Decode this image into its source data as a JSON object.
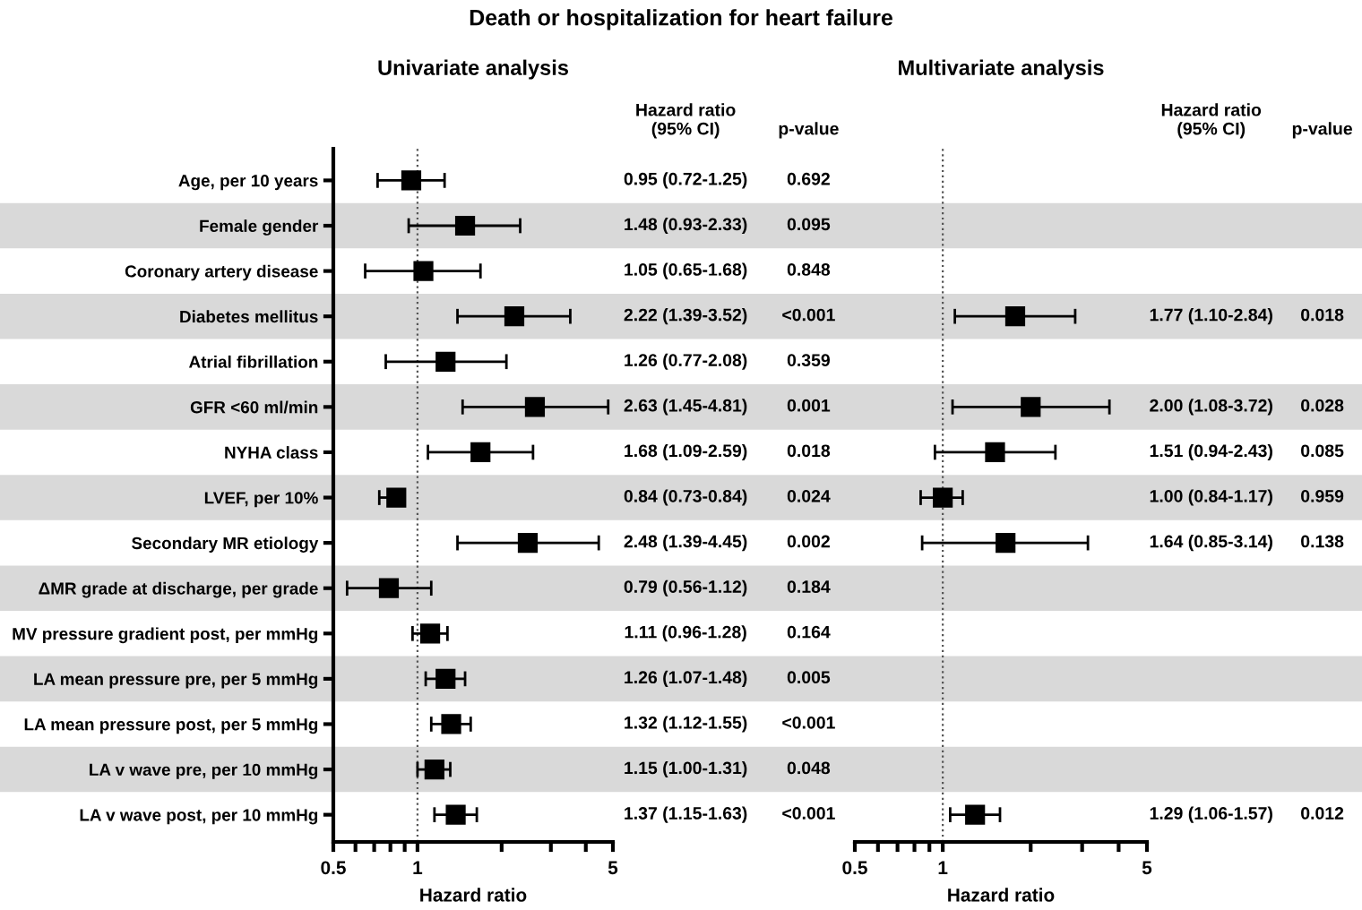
{
  "chart_data": [
    {
      "type": "scatter",
      "orientation": "horizontal",
      "title": "Death or hospitalization for heart failure",
      "subtitle": "Univariate analysis",
      "xlabel": "Hazard ratio",
      "log": "x",
      "marker": "square",
      "grid": false,
      "legend": false,
      "categories": [
        "Age, per 10 years",
        "Female gender",
        "Coronary artery disease",
        "Diabetes mellitus",
        "Atrial fibrillation",
        "GFR <60 ml/min",
        "NYHA class",
        "LVEF, per 10%",
        "Secondary MR etiology",
        "ΔMR grade at discharge, per grade",
        "MV pressure gradient post, per mmHg",
        "LA mean pressure pre, per 5 mmHg",
        "LA mean pressure post, per 5 mmHg",
        "LA v wave pre, per 10 mmHg",
        "LA v wave post, per 10 mmHg"
      ],
      "series": [
        {
          "color": "#000000",
          "values": [
            0.95,
            1.48,
            1.05,
            2.22,
            1.26,
            2.63,
            1.68,
            0.84,
            2.48,
            0.79,
            1.11,
            1.26,
            1.32,
            1.15,
            1.37
          ],
          "errors": [
            [
              0.72,
              1.25
            ],
            [
              0.93,
              2.33
            ],
            [
              0.65,
              1.68
            ],
            [
              1.39,
              3.52
            ],
            [
              0.77,
              2.08
            ],
            [
              1.45,
              4.81
            ],
            [
              1.09,
              2.59
            ],
            [
              0.73,
              0.84
            ],
            [
              1.39,
              4.45
            ],
            [
              0.56,
              1.12
            ],
            [
              0.96,
              1.28
            ],
            [
              1.07,
              1.48
            ],
            [
              1.12,
              1.55
            ],
            [
              1.0,
              1.31
            ],
            [
              1.15,
              1.63
            ]
          ],
          "value_labels": [
            "0.95 (0.72-1.25)",
            "1.48 (0.93-2.33)",
            "1.05 (0.65-1.68)",
            "2.22 (1.39-3.52)",
            "1.26 (0.77-2.08)",
            "2.63 (1.45-4.81)",
            "1.68 (1.09-2.59)",
            "0.84 (0.73-0.84)",
            "2.48 (1.39-4.45)",
            "0.79 (0.56-1.12)",
            "1.11 (0.96-1.28)",
            "1.26 (1.07-1.48)",
            "1.32 (1.12-1.55)",
            "1.15 (1.00-1.31)",
            "1.37 (1.15-1.63)"
          ]
        }
      ],
      "xlim": [
        0.5,
        5
      ],
      "xticks": [
        0.5,
        {
          "value": 0.6,
          "label": null
        },
        {
          "value": 0.7,
          "label": null
        },
        {
          "value": 0.8,
          "label": null
        },
        {
          "value": 0.9,
          "label": null
        },
        1,
        {
          "value": 2,
          "label": null
        },
        {
          "value": 3,
          "label": null
        },
        {
          "value": 4,
          "label": null
        },
        5
      ],
      "ref_lines": [
        {
          "axis": "x",
          "value": 1,
          "color": "#555555",
          "line_style": "dotted"
        }
      ],
      "bands": [
        {
          "axis": "y",
          "from": "Female gender",
          "to": "Female gender",
          "color": "#d9d9d9"
        },
        {
          "axis": "y",
          "from": "Diabetes mellitus",
          "to": "Diabetes mellitus",
          "color": "#d9d9d9"
        },
        {
          "axis": "y",
          "from": "GFR <60 ml/min",
          "to": "GFR <60 ml/min",
          "color": "#d9d9d9"
        },
        {
          "axis": "y",
          "from": "LVEF, per 10%",
          "to": "LVEF, per 10%",
          "color": "#d9d9d9"
        },
        {
          "axis": "y",
          "from": "ΔMR grade at discharge, per grade",
          "to": "ΔMR grade at discharge, per grade",
          "color": "#d9d9d9"
        },
        {
          "axis": "y",
          "from": "LA mean pressure pre, per 5 mmHg",
          "to": "LA mean pressure pre, per 5 mmHg",
          "color": "#d9d9d9"
        },
        {
          "axis": "y",
          "from": "LA v wave pre, per 10 mmHg",
          "to": "LA v wave pre, per 10 mmHg",
          "color": "#d9d9d9"
        }
      ],
      "annotations": [
        "Hazard ratio\n(95% CI)",
        "p-value",
        "0.692",
        "0.095",
        "0.848",
        "<0.001",
        "0.359",
        "0.001",
        "0.018",
        "0.024",
        "0.002",
        "0.184",
        "0.164",
        "0.005",
        "<0.001",
        "0.048",
        "<0.001"
      ]
    },
    {
      "type": "scatter",
      "orientation": "horizontal",
      "subtitle": "Multivariate analysis",
      "xlabel": "Hazard ratio",
      "log": "x",
      "marker": "square",
      "grid": false,
      "legend": false,
      "tick_labels": "x",
      "categories": [
        "Age, per 10 years",
        "Female gender",
        "Coronary artery disease",
        "Diabetes mellitus",
        "Atrial fibrillation",
        "GFR <60 ml/min",
        "NYHA class",
        "LVEF, per 10%",
        "Secondary MR etiology",
        "ΔMR grade at discharge, per grade",
        "MV pressure gradient post, per mmHg",
        "LA mean pressure pre, per 5 mmHg",
        "LA mean pressure post, per 5 mmHg",
        "LA v wave pre, per 10 mmHg",
        "LA v wave post, per 10 mmHg"
      ],
      "series": [
        {
          "color": "#000000",
          "values": [
            null,
            null,
            null,
            1.77,
            null,
            2.0,
            1.51,
            1.0,
            1.64,
            null,
            null,
            null,
            null,
            null,
            1.29
          ],
          "errors": [
            null,
            null,
            null,
            [
              1.1,
              2.84
            ],
            null,
            [
              1.08,
              3.72
            ],
            [
              0.94,
              2.43
            ],
            [
              0.84,
              1.17
            ],
            [
              0.85,
              3.14
            ],
            null,
            null,
            null,
            null,
            null,
            [
              1.06,
              1.57
            ]
          ],
          "value_labels": [
            null,
            null,
            null,
            "1.77 (1.10-2.84)",
            null,
            "2.00 (1.08-3.72)",
            "1.51 (0.94-2.43)",
            "1.00 (0.84-1.17)",
            "1.64 (0.85-3.14)",
            null,
            null,
            null,
            null,
            null,
            "1.29 (1.06-1.57)"
          ]
        }
      ],
      "xlim": [
        0.5,
        5
      ],
      "xticks": [
        0.5,
        {
          "value": 0.6,
          "label": null
        },
        {
          "value": 0.7,
          "label": null
        },
        {
          "value": 0.8,
          "label": null
        },
        {
          "value": 0.9,
          "label": null
        },
        1,
        {
          "value": 2,
          "label": null
        },
        {
          "value": 3,
          "label": null
        },
        {
          "value": 4,
          "label": null
        },
        5
      ],
      "ref_lines": [
        {
          "axis": "x",
          "value": 1,
          "color": "#555555",
          "line_style": "dotted"
        }
      ],
      "bands": [
        {
          "axis": "y",
          "from": "Female gender",
          "to": "Female gender",
          "color": "#d9d9d9"
        },
        {
          "axis": "y",
          "from": "Diabetes mellitus",
          "to": "Diabetes mellitus",
          "color": "#d9d9d9"
        },
        {
          "axis": "y",
          "from": "GFR <60 ml/min",
          "to": "GFR <60 ml/min",
          "color": "#d9d9d9"
        },
        {
          "axis": "y",
          "from": "LVEF, per 10%",
          "to": "LVEF, per 10%",
          "color": "#d9d9d9"
        },
        {
          "axis": "y",
          "from": "ΔMR grade at discharge, per grade",
          "to": "ΔMR grade at discharge, per grade",
          "color": "#d9d9d9"
        },
        {
          "axis": "y",
          "from": "LA mean pressure pre, per 5 mmHg",
          "to": "LA mean pressure pre, per 5 mmHg",
          "color": "#d9d9d9"
        },
        {
          "axis": "y",
          "from": "LA v wave pre, per 10 mmHg",
          "to": "LA v wave pre, per 10 mmHg",
          "color": "#d9d9d9"
        }
      ],
      "annotations": [
        "Hazard ratio\n(95% CI)",
        "p-value",
        "0.018",
        "0.028",
        "0.085",
        "0.959",
        "0.138",
        "0.012"
      ]
    }
  ]
}
